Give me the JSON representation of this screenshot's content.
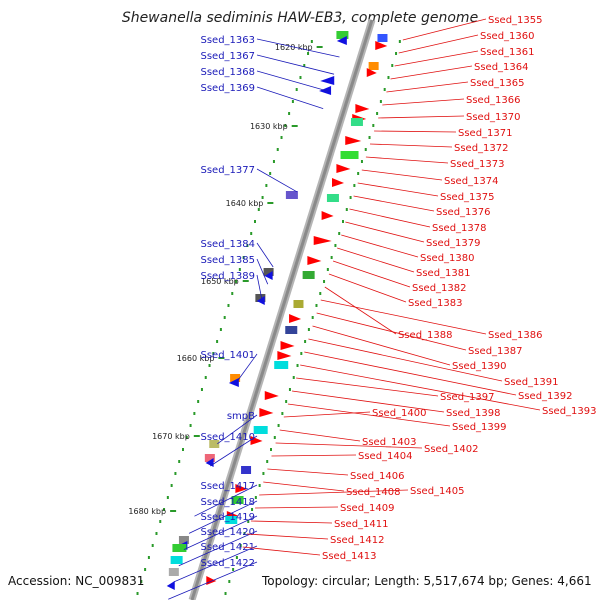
{
  "title": "Shewanella sediminis HAW-EB3, complete genome",
  "footer": {
    "accession": "Accession: NC_009831",
    "summary": "Topology: circular; Length: 5,517,674 bp; Genes: 4,661"
  },
  "colors": {
    "backbone": "#8a8a8a",
    "left_label": "#1a1ab8",
    "right_label": "#e01010",
    "tick": "#2a9a2a",
    "reverse_gene": "#1010e0",
    "forward_gene": "#ff0000"
  },
  "kbp_ticks": [
    "1620 kbp",
    "1630 kbp",
    "1640 kbp",
    "1650 kbp",
    "1660 kbp",
    "1670 kbp",
    "1680 kbp"
  ],
  "left_genes": [
    "Ssed_1363",
    "Ssed_1367",
    "Ssed_1368",
    "Ssed_1369",
    "Ssed_1377",
    "Ssed_1384",
    "Ssed_1385",
    "Ssed_1389",
    "Ssed_1401",
    "smpB",
    "Ssed_1410",
    "Ssed_1417",
    "Ssed_1418",
    "Ssed_1419",
    "Ssed_1420",
    "Ssed_1421",
    "Ssed_1422"
  ],
  "right_genes": [
    "Ssed_1355",
    "Ssed_1360",
    "Ssed_1361",
    "Ssed_1364",
    "Ssed_1365",
    "Ssed_1366",
    "Ssed_1370",
    "Ssed_1371",
    "Ssed_1372",
    "Ssed_1373",
    "Ssed_1374",
    "Ssed_1375",
    "Ssed_1376",
    "Ssed_1378",
    "Ssed_1379",
    "Ssed_1380",
    "Ssed_1381",
    "Ssed_1382",
    "Ssed_1383",
    "Ssed_1388",
    "Ssed_1386",
    "Ssed_1387",
    "Ssed_1390",
    "Ssed_1391",
    "Ssed_1392",
    "Ssed_1393",
    "Ssed_1397",
    "Ssed_1398",
    "Ssed_1399",
    "Ssed_1400",
    "Ssed_1403",
    "Ssed_1402",
    "Ssed_1404",
    "Ssed_1406",
    "Ssed_1408",
    "Ssed_1405",
    "Ssed_1409",
    "Ssed_1411",
    "Ssed_1412",
    "Ssed_1413"
  ]
}
